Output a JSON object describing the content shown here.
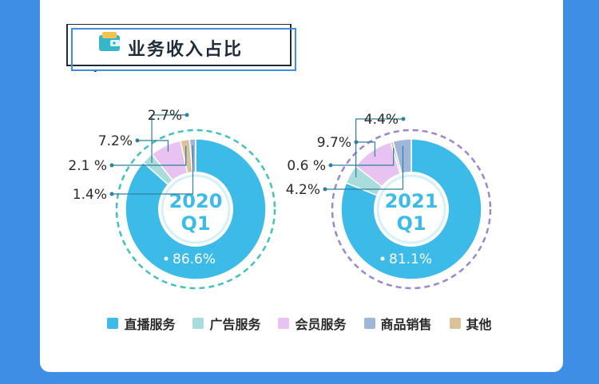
{
  "header": {
    "title": "业务收入占比"
  },
  "colors": {
    "live": "#3dbbe8",
    "ads": "#a9dcdc",
    "member": "#e8c3f2",
    "goods": "#9fb6d8",
    "other": "#dcc29a",
    "ring_2020": "#43c2b8",
    "ring_2021": "#9b86d0",
    "text": "#2a2a2a"
  },
  "chart_data": [
    {
      "type": "pie",
      "center_label": [
        "2020",
        "Q1"
      ],
      "slices": [
        {
          "name": "直播服务",
          "value": 86.6,
          "label": "86.6%"
        },
        {
          "name": "广告服务",
          "value": 2.7,
          "label": "2.7%"
        },
        {
          "name": "会员服务",
          "value": 7.2,
          "label": "7.2%"
        },
        {
          "name": "其他",
          "value": 2.1,
          "label": "2.1 %"
        },
        {
          "name": "商品销售",
          "value": 1.4,
          "label": "1.4%"
        }
      ]
    },
    {
      "type": "pie",
      "center_label": [
        "2021",
        "Q1"
      ],
      "slices": [
        {
          "name": "直播服务",
          "value": 81.1,
          "label": "81.1%"
        },
        {
          "name": "广告服务",
          "value": 4.4,
          "label": "4.4%"
        },
        {
          "name": "会员服务",
          "value": 9.7,
          "label": "9.7%"
        },
        {
          "name": "其他",
          "value": 0.6,
          "label": "0.6 %"
        },
        {
          "name": "商品销售",
          "value": 4.2,
          "label": "4.2%"
        }
      ]
    }
  ],
  "legend": [
    {
      "label": "直播服务",
      "color": "#3dbbe8"
    },
    {
      "label": "广告服务",
      "color": "#a9dcdc"
    },
    {
      "label": "会员服务",
      "color": "#e8c3f2"
    },
    {
      "label": "商品销售",
      "color": "#9fb6d8"
    },
    {
      "label": "其他",
      "color": "#dcc29a"
    }
  ]
}
